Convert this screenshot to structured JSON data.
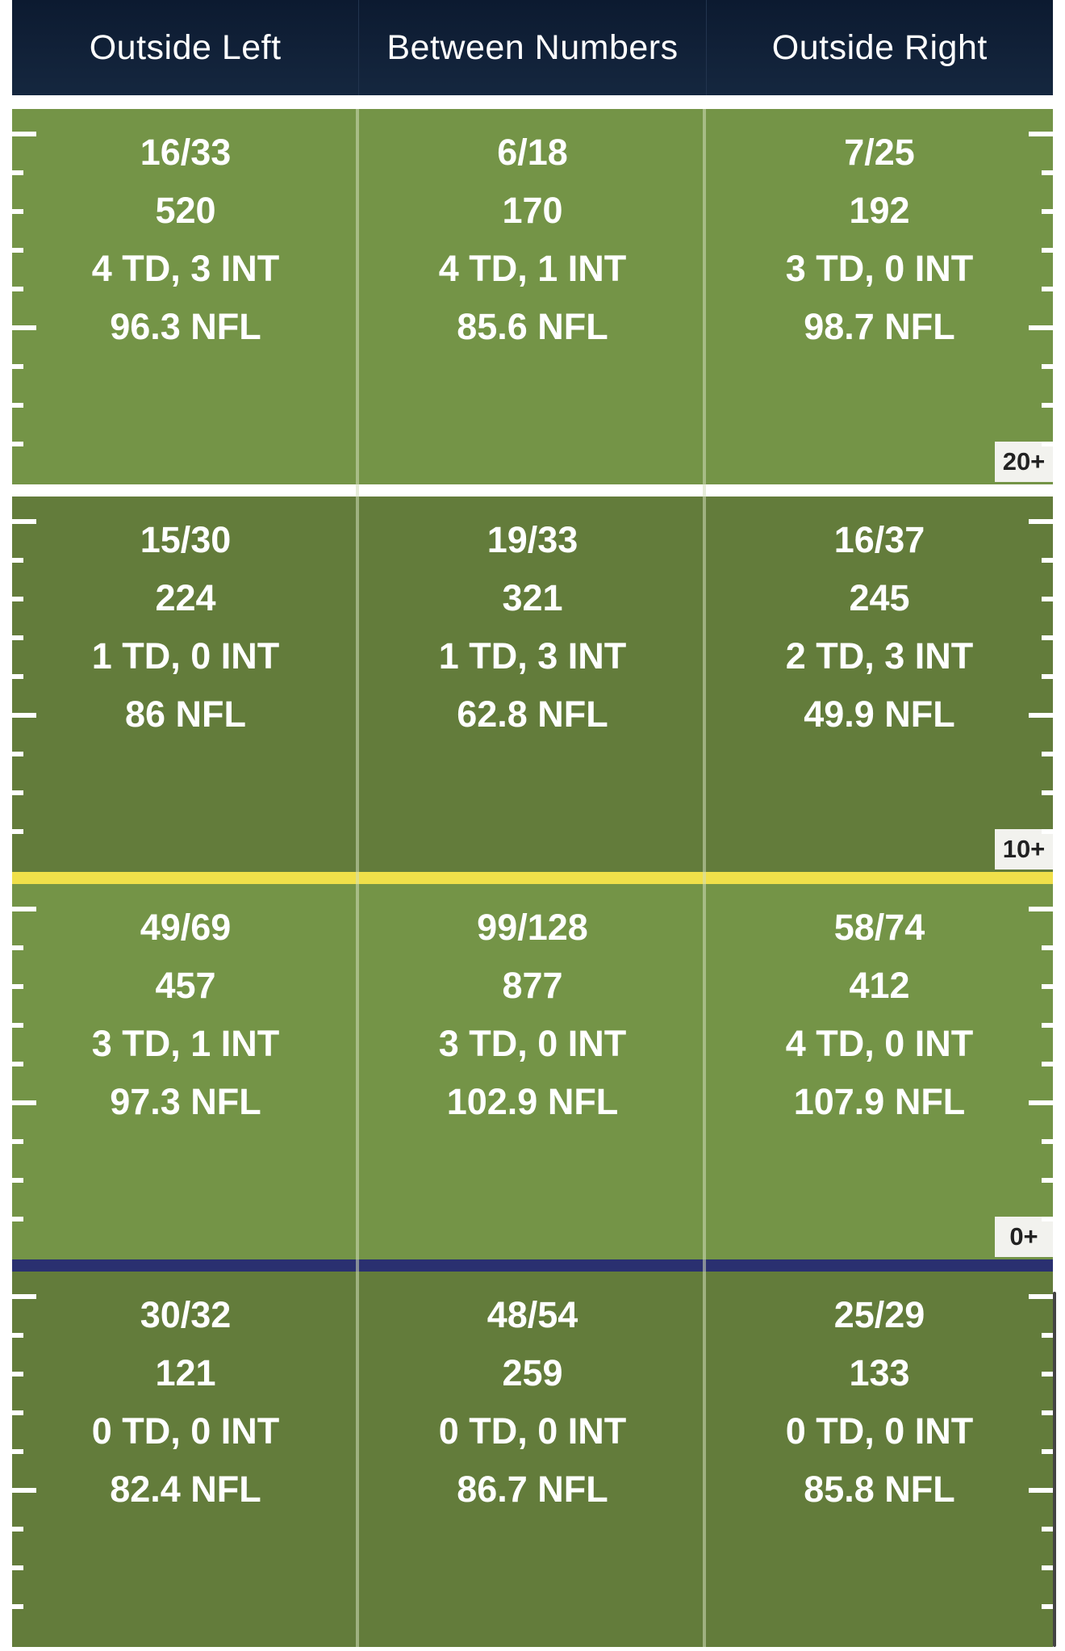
{
  "header": {
    "columns": [
      "Outside Left",
      "Between Numbers",
      "Outside Right"
    ]
  },
  "colors": {
    "header_bg": "#0c1a30",
    "field_light": "#749447",
    "field_dark": "#637c3b",
    "line_of_scrimmage": "#2a3070",
    "first_down_line": "#f0e04a",
    "separator": "#ffffff"
  },
  "zones": [
    {
      "depth_label": "20+",
      "cells": [
        {
          "comp_att": "16/33",
          "yards": "520",
          "td_int": "4 TD, 3 INT",
          "rating": "96.3 NFL"
        },
        {
          "comp_att": "6/18",
          "yards": "170",
          "td_int": "4 TD, 1 INT",
          "rating": "85.6 NFL"
        },
        {
          "comp_att": "7/25",
          "yards": "192",
          "td_int": "3 TD, 0 INT",
          "rating": "98.7 NFL"
        }
      ]
    },
    {
      "depth_label": "10+",
      "cells": [
        {
          "comp_att": "15/30",
          "yards": "224",
          "td_int": "1 TD, 0 INT",
          "rating": "86 NFL"
        },
        {
          "comp_att": "19/33",
          "yards": "321",
          "td_int": "1 TD, 3 INT",
          "rating": "62.8 NFL"
        },
        {
          "comp_att": "16/37",
          "yards": "245",
          "td_int": "2 TD, 3 INT",
          "rating": "49.9 NFL"
        }
      ]
    },
    {
      "depth_label": "0+",
      "cells": [
        {
          "comp_att": "49/69",
          "yards": "457",
          "td_int": "3 TD, 1 INT",
          "rating": "97.3 NFL"
        },
        {
          "comp_att": "99/128",
          "yards": "877",
          "td_int": "3 TD, 0 INT",
          "rating": "102.9 NFL"
        },
        {
          "comp_att": "58/74",
          "yards": "412",
          "td_int": "4 TD, 0 INT",
          "rating": "107.9 NFL"
        }
      ]
    },
    {
      "depth_label": "",
      "cells": [
        {
          "comp_att": "30/32",
          "yards": "121",
          "td_int": "0 TD, 0 INT",
          "rating": "82.4 NFL"
        },
        {
          "comp_att": "48/54",
          "yards": "259",
          "td_int": "0 TD, 0 INT",
          "rating": "86.7 NFL"
        },
        {
          "comp_att": "25/29",
          "yards": "133",
          "td_int": "0 TD, 0 INT",
          "rating": "85.8 NFL"
        }
      ]
    }
  ]
}
